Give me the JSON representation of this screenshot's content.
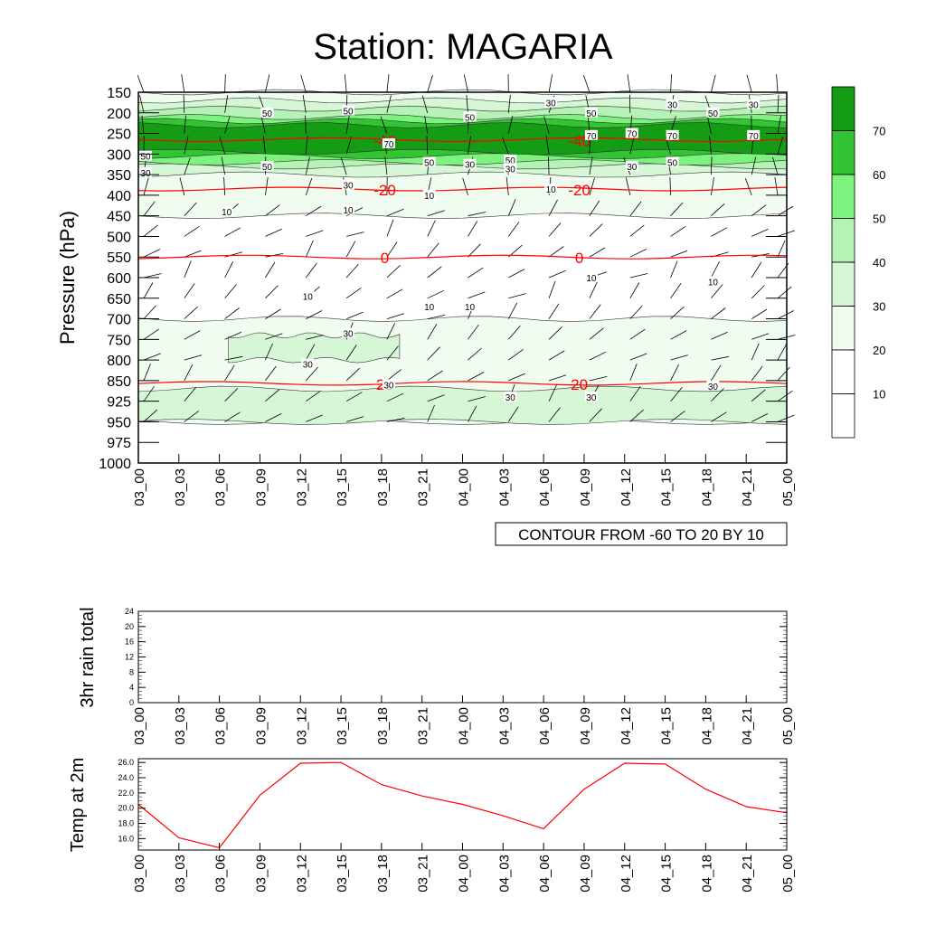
{
  "title": "Station: MAGARIA",
  "time_labels": [
    "03_00",
    "03_03",
    "03_06",
    "03_09",
    "03_12",
    "03_15",
    "03_18",
    "03_21",
    "04_00",
    "04_03",
    "04_06",
    "04_09",
    "04_12",
    "04_15",
    "04_18",
    "04_21",
    "05_00"
  ],
  "contour_note": "CONTOUR FROM -60 TO 20 BY 10",
  "colors": {
    "shade_levels": [
      "#ffffff",
      "#ffffff",
      "#f0fcf0",
      "#d6f7d6",
      "#b6f2b6",
      "#7ef27e",
      "#33c433",
      "#149c14"
    ],
    "temp_contour": "#ff0000",
    "speed_contour": "#000000",
    "temp_line": "#ff0000"
  },
  "chart_data": [
    {
      "type": "heatmap",
      "name": "upper-air time-pressure cross section",
      "ylabel": "Pressure (hPa)",
      "y_levels": [
        150,
        200,
        250,
        300,
        350,
        400,
        450,
        500,
        550,
        600,
        650,
        700,
        750,
        800,
        850,
        925,
        950,
        975,
        1000
      ],
      "x": [
        "03_00",
        "03_03",
        "03_06",
        "03_09",
        "03_12",
        "03_15",
        "03_18",
        "03_21",
        "04_00",
        "04_03",
        "04_06",
        "04_09",
        "04_12",
        "04_15",
        "04_18",
        "04_21",
        "05_00"
      ],
      "color_scale": {
        "levels": [
          10,
          20,
          30,
          40,
          50,
          60,
          70
        ]
      },
      "wind_speed_regions": [
        {
          "level": 20,
          "p_top": 150,
          "p_bottom": 450
        },
        {
          "level": 30,
          "p_top": 170,
          "p_bottom": 350
        },
        {
          "level": 40,
          "p_top": 190,
          "p_bottom": 330
        },
        {
          "level": 50,
          "p_top": 210,
          "p_bottom": 320
        },
        {
          "level": 60,
          "p_top": 220,
          "p_bottom": 305
        },
        {
          "level": 70,
          "p_top": 230,
          "p_bottom": 295
        },
        {
          "level": 20,
          "p_top": 700,
          "p_bottom": 950
        },
        {
          "level": 30,
          "p_top": 740,
          "p_bottom": 800,
          "x_from": "03_06",
          "x_to": "03_18"
        },
        {
          "level": 30,
          "p_top": 880,
          "p_bottom": 950
        }
      ],
      "temperature_contours": [
        {
          "value": -40,
          "label": "-40",
          "pressure": 265
        },
        {
          "value": -20,
          "label": "-20",
          "pressure": 385
        },
        {
          "value": 0,
          "label": "0",
          "pressure": 550
        },
        {
          "value": 20,
          "label": "20",
          "pressure": 860
        }
      ],
      "isotach_labels": [
        {
          "label": "50",
          "x": "03_09",
          "pressure": 200
        },
        {
          "label": "50",
          "x": "03_15",
          "pressure": 195
        },
        {
          "label": "50",
          "x": "04_00",
          "pressure": 210
        },
        {
          "label": "50",
          "x": "04_09",
          "pressure": 200
        },
        {
          "label": "50",
          "x": "04_18",
          "pressure": 200
        },
        {
          "label": "30",
          "x": "04_06",
          "pressure": 175
        },
        {
          "label": "30",
          "x": "04_15",
          "pressure": 180
        },
        {
          "label": "30",
          "x": "04_21",
          "pressure": 180
        },
        {
          "label": "70",
          "x": "03_18",
          "pressure": 275
        },
        {
          "label": "70",
          "x": "04_09",
          "pressure": 255
        },
        {
          "label": "70",
          "x": "04_12",
          "pressure": 250
        },
        {
          "label": "70",
          "x": "04_15",
          "pressure": 255
        },
        {
          "label": "70",
          "x": "04_21",
          "pressure": 255
        },
        {
          "label": "50",
          "x": "03_00",
          "pressure": 305
        },
        {
          "label": "50",
          "x": "03_09",
          "pressure": 330
        },
        {
          "label": "50",
          "x": "03_21",
          "pressure": 320
        },
        {
          "label": "50",
          "x": "04_03",
          "pressure": 315
        },
        {
          "label": "50",
          "x": "04_15",
          "pressure": 320
        },
        {
          "label": "30",
          "x": "03_00",
          "pressure": 345
        },
        {
          "label": "30",
          "x": "03_15",
          "pressure": 375
        },
        {
          "label": "30",
          "x": "04_00",
          "pressure": 325
        },
        {
          "label": "30",
          "x": "04_03",
          "pressure": 335
        },
        {
          "label": "30",
          "x": "04_12",
          "pressure": 330
        },
        {
          "label": "10",
          "x": "03_21",
          "pressure": 400
        },
        {
          "label": "10",
          "x": "04_06",
          "pressure": 385
        },
        {
          "label": "10",
          "x": "03_06",
          "pressure": 440
        },
        {
          "label": "10",
          "x": "03_15",
          "pressure": 435
        },
        {
          "label": "10",
          "x": "04_09",
          "pressure": 600
        },
        {
          "label": "10",
          "x": "04_18",
          "pressure": 610
        },
        {
          "label": "10",
          "x": "03_12",
          "pressure": 645
        },
        {
          "label": "10",
          "x": "03_21",
          "pressure": 670
        },
        {
          "label": "10",
          "x": "04_00",
          "pressure": 670
        },
        {
          "label": "30",
          "x": "03_15",
          "pressure": 735
        },
        {
          "label": "30",
          "x": "03_12",
          "pressure": 810
        },
        {
          "label": "30",
          "x": "03_18",
          "pressure": 865
        },
        {
          "label": "30",
          "x": "04_03",
          "pressure": 910
        },
        {
          "label": "30",
          "x": "04_09",
          "pressure": 910
        },
        {
          "label": "30",
          "x": "04_18",
          "pressure": 870
        }
      ]
    },
    {
      "type": "line",
      "ylabel": "3hr rain total",
      "x": [
        "03_00",
        "03_03",
        "03_06",
        "03_09",
        "03_12",
        "03_15",
        "03_18",
        "03_21",
        "04_00",
        "04_03",
        "04_06",
        "04_09",
        "04_12",
        "04_15",
        "04_18",
        "04_21",
        "05_00"
      ],
      "y": [
        0,
        0,
        0,
        0,
        0,
        0,
        0,
        0,
        0,
        0,
        0,
        0,
        0,
        0,
        0,
        0,
        0
      ],
      "ylim": [
        0,
        24
      ],
      "yticks": [
        "0",
        "4",
        "8",
        "12",
        "16",
        "20",
        "24"
      ]
    },
    {
      "type": "line",
      "ylabel": "Temp at 2m",
      "x": [
        "03_00",
        "03_03",
        "03_06",
        "03_09",
        "03_12",
        "03_15",
        "03_18",
        "03_21",
        "04_00",
        "04_03",
        "04_06",
        "04_09",
        "04_12",
        "04_15",
        "04_18",
        "04_21",
        "05_00"
      ],
      "y": [
        20.5,
        16.1,
        14.8,
        21.7,
        25.9,
        26.0,
        23.1,
        21.6,
        20.5,
        19.0,
        17.3,
        22.5,
        25.9,
        25.8,
        22.5,
        20.2,
        19.4
      ],
      "ylim": [
        14.5,
        26.5
      ],
      "yticks": [
        "16.0",
        "18.0",
        "20.0",
        "22.0",
        "24.0",
        "26.0"
      ]
    }
  ]
}
